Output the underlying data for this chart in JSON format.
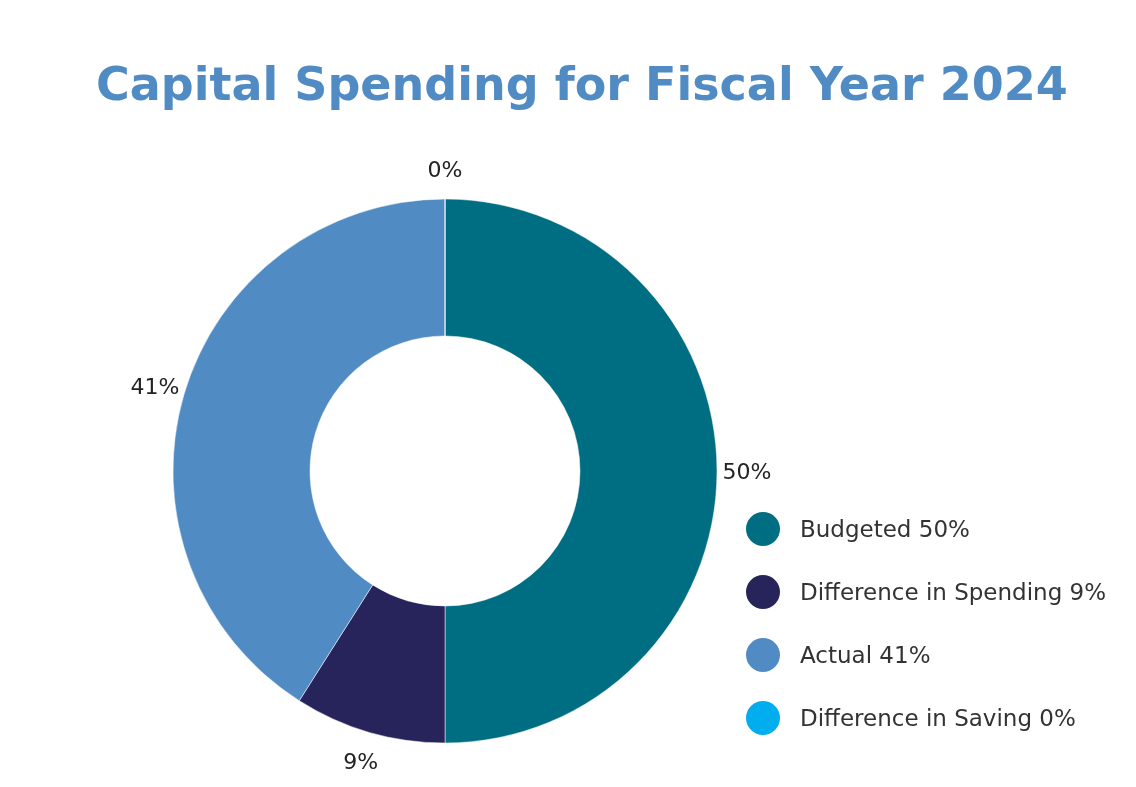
{
  "chart_data": {
    "type": "donut",
    "title": "Capital Spending for Fiscal Year 2024",
    "categories": [
      "Budgeted",
      "Difference in Spending",
      "Actual",
      "Difference in Saving"
    ],
    "values": [
      50,
      9,
      41,
      0
    ],
    "value_labels": [
      "50%",
      "9%",
      "41%",
      "0%"
    ],
    "colors": [
      "#006e82",
      "#27245c",
      "#518bc4",
      "#00aeef"
    ],
    "legend": "right"
  }
}
